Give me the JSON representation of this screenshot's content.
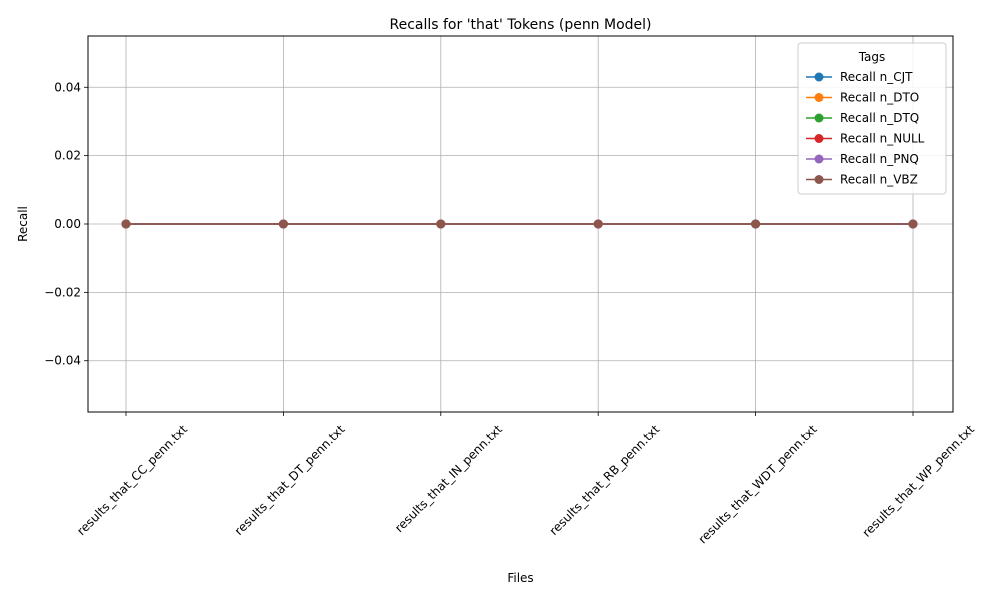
{
  "chart_data": {
    "type": "line",
    "title": "Recalls for 'that' Tokens (penn Model)",
    "xlabel": "Files",
    "ylabel": "Recall",
    "categories": [
      "results_that_CC_penn.txt",
      "results_that_DT_penn.txt",
      "results_that_IN_penn.txt",
      "results_that_RB_penn.txt",
      "results_that_WDT_penn.txt",
      "results_that_WP_penn.txt"
    ],
    "ylim": [
      -0.055,
      0.055
    ],
    "yticks": [
      -0.04,
      -0.02,
      0.0,
      0.02,
      0.04
    ],
    "ytick_labels": [
      "−0.04",
      "−0.02",
      "0.00",
      "0.02",
      "0.04"
    ],
    "grid": true,
    "legend": {
      "title": "Tags",
      "placement": "top-right"
    },
    "series": [
      {
        "name": "Recall n_CJT",
        "color": "#1f77b4",
        "values": [
          0,
          0,
          0,
          0,
          0,
          0
        ]
      },
      {
        "name": "Recall n_DTO",
        "color": "#ff7f0e",
        "values": [
          0,
          0,
          0,
          0,
          0,
          0
        ]
      },
      {
        "name": "Recall n_DTQ",
        "color": "#2ca02c",
        "values": [
          0,
          0,
          0,
          0,
          0,
          0
        ]
      },
      {
        "name": "Recall n_NULL",
        "color": "#d62728",
        "values": [
          0,
          0,
          0,
          0,
          0,
          0
        ]
      },
      {
        "name": "Recall n_PNQ",
        "color": "#9467bd",
        "values": [
          0,
          0,
          0,
          0,
          0,
          0
        ]
      },
      {
        "name": "Recall n_VBZ",
        "color": "#8c564b",
        "values": [
          0,
          0,
          0,
          0,
          0,
          0
        ]
      }
    ]
  }
}
